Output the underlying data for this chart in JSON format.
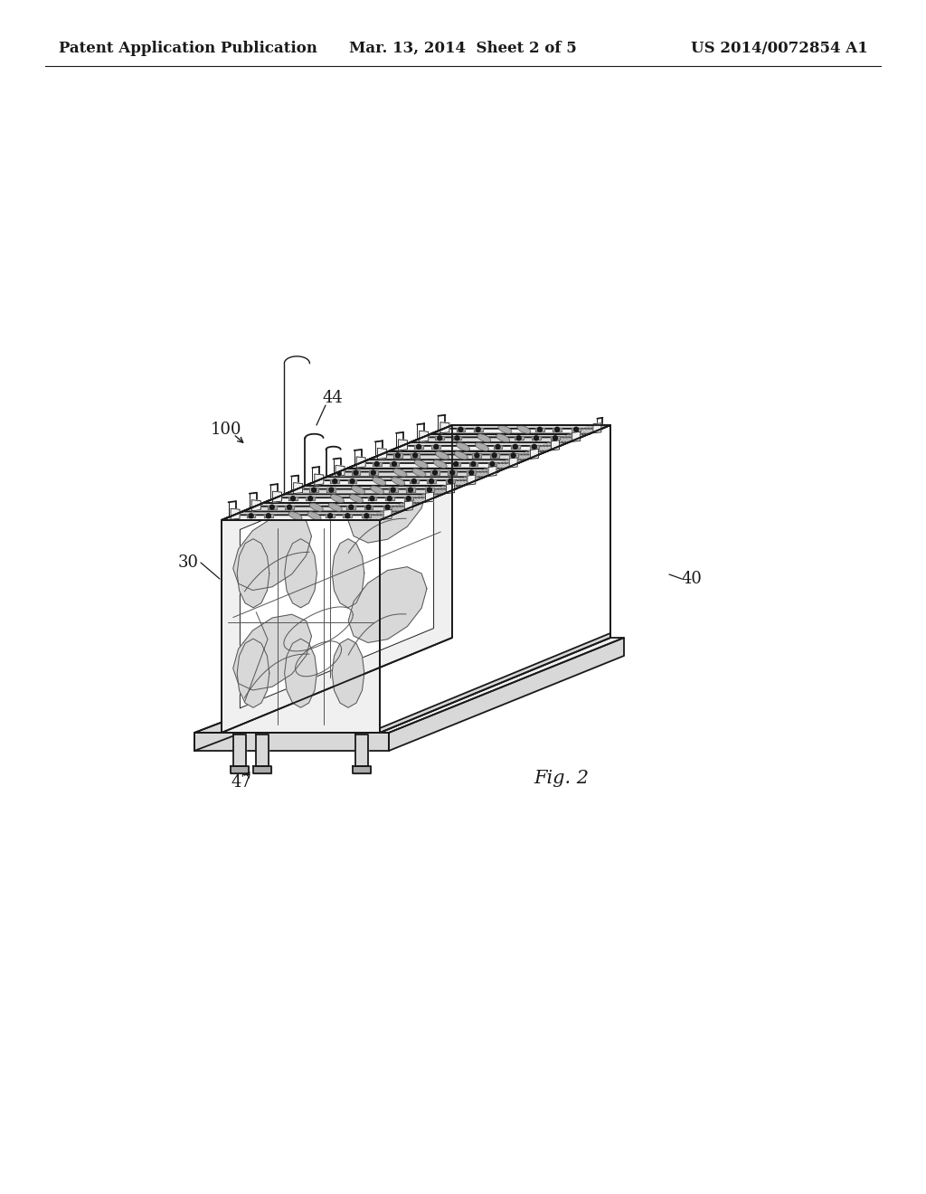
{
  "bg_color": "#ffffff",
  "lc": "#1a1a1a",
  "lc_med": "#555555",
  "lc_light": "#999999",
  "fill_white": "#ffffff",
  "fill_light": "#f0f0f0",
  "fill_mid": "#d8d8d8",
  "fill_dark": "#aaaaaa",
  "fill_very_dark": "#666666",
  "header_left": "Patent Application Publication",
  "header_center": "Mar. 13, 2014  Sheet 2 of 5",
  "header_right": "US 2014/0072854 A1",
  "fig_label": "Fig. 2",
  "label_100": "100",
  "label_30": "30",
  "label_44": "44",
  "label_40": "40",
  "label_47": "47",
  "header_fontsize": 12,
  "label_fontsize": 13,
  "fig_fontsize": 15
}
